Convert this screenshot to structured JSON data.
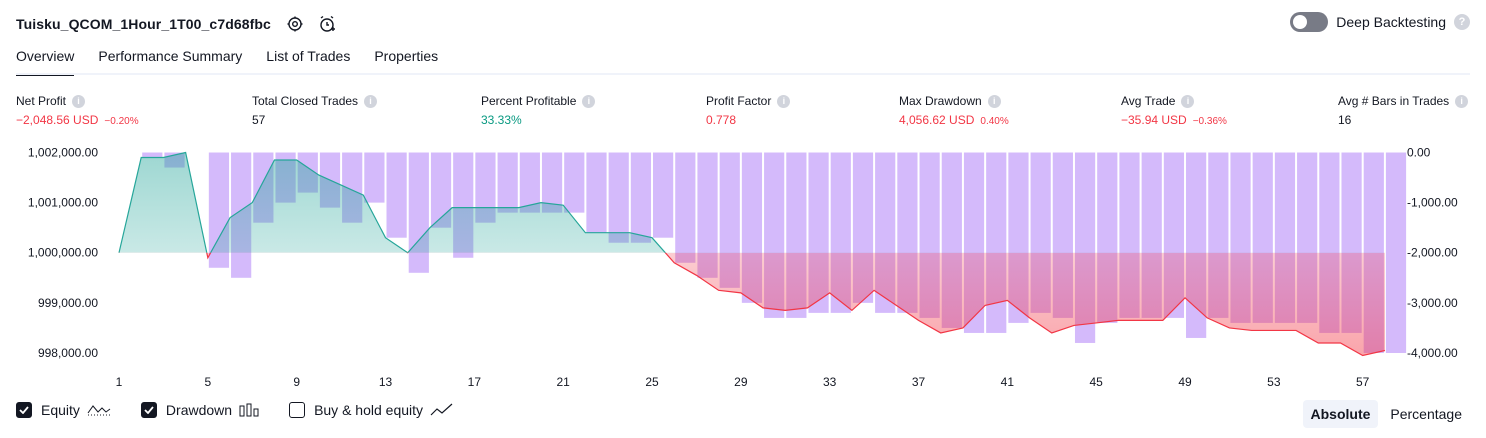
{
  "strategy": {
    "title": "Tuisku_QCOM_1Hour_1T00_c7d68fbc"
  },
  "deep_backtesting": {
    "label": "Deep Backtesting",
    "enabled": false,
    "help": "?"
  },
  "tabs": [
    {
      "label": "Overview",
      "active": true
    },
    {
      "label": "Performance Summary",
      "active": false
    },
    {
      "label": "List of Trades",
      "active": false
    },
    {
      "label": "Properties",
      "active": false
    }
  ],
  "metrics": {
    "net_profit": {
      "label": "Net Profit",
      "value": "−2,048.56 USD",
      "sub": "−0.20%"
    },
    "total_closed_trades": {
      "label": "Total Closed Trades",
      "value": "57"
    },
    "percent_profitable": {
      "label": "Percent Profitable",
      "value": "33.33%"
    },
    "profit_factor": {
      "label": "Profit Factor",
      "value": "0.778"
    },
    "max_drawdown": {
      "label": "Max Drawdown",
      "value": "4,056.62 USD",
      "sub": "0.40%"
    },
    "avg_trade": {
      "label": "Avg Trade",
      "value": "−35.94 USD",
      "sub": "−0.36%"
    },
    "avg_bars": {
      "label": "Avg # Bars in Trades",
      "value": "16"
    },
    "info_glyph": "i"
  },
  "chart_data": {
    "type": "line",
    "x": [
      1,
      2,
      3,
      4,
      5,
      6,
      7,
      8,
      9,
      10,
      11,
      12,
      13,
      14,
      15,
      16,
      17,
      18,
      19,
      20,
      21,
      22,
      23,
      24,
      25,
      26,
      27,
      28,
      29,
      30,
      31,
      32,
      33,
      34,
      35,
      36,
      37,
      38,
      39,
      40,
      41,
      42,
      43,
      44,
      45,
      46,
      47,
      48,
      49,
      50,
      51,
      52,
      53,
      54,
      55,
      56,
      57,
      58
    ],
    "x_ticks": [
      "1",
      "5",
      "9",
      "13",
      "17",
      "21",
      "25",
      "29",
      "33",
      "37",
      "41",
      "45",
      "49",
      "53",
      "57"
    ],
    "y_left_ticks": [
      "1,002,000.00",
      "1,001,000.00",
      "1,000,000.00",
      "999,000.00",
      "998,000.00"
    ],
    "y_left_range": [
      997900,
      1002050
    ],
    "y_right_ticks": [
      "0.00",
      "-1,000.00",
      "-2,000.00",
      "-3,000.00",
      "-4,000.00"
    ],
    "y_right_range": [
      -4100,
      50
    ],
    "baseline": 1000000,
    "series": [
      {
        "name": "Equity",
        "values": [
          1000000,
          1001900,
          1001900,
          1002000,
          999900,
          1000700,
          1001000,
          1001850,
          1001850,
          1001550,
          1001350,
          1001150,
          1000300,
          1000000,
          1000500,
          1000900,
          1000900,
          1000900,
          1000900,
          1001000,
          1000950,
          1000400,
          1000400,
          1000400,
          1000300,
          999800,
          999550,
          999250,
          999200,
          998900,
          998850,
          998900,
          999200,
          998850,
          999250,
          998950,
          998650,
          998400,
          998500,
          998950,
          999050,
          998700,
          998400,
          998550,
          998600,
          998650,
          998650,
          998650,
          999100,
          998700,
          998500,
          998450,
          998450,
          998450,
          998200,
          998200,
          997950,
          998050
        ]
      },
      {
        "name": "Drawdown",
        "values": [
          0,
          -100,
          -300,
          0,
          -2300,
          -2500,
          -1400,
          -1000,
          -800,
          -1100,
          -1400,
          -1000,
          -1700,
          -2400,
          -1500,
          -2100,
          -1400,
          -1200,
          -1200,
          -1200,
          -1200,
          -1600,
          -1800,
          -1800,
          -1700,
          -2200,
          -2500,
          -2700,
          -3000,
          -3300,
          -3300,
          -3200,
          -3200,
          -3000,
          -3200,
          -3200,
          -3300,
          -3500,
          -3600,
          -3600,
          -3400,
          -3200,
          -3300,
          -3800,
          -3400,
          -3300,
          -3300,
          -3300,
          -3700,
          -3300,
          -3400,
          -3400,
          -3400,
          -3400,
          -3600,
          -3600,
          -4000,
          -4000
        ]
      }
    ]
  },
  "legend": [
    {
      "label": "Equity",
      "checked": true,
      "icon": "equity-line-icon"
    },
    {
      "label": "Drawdown",
      "checked": true,
      "icon": "drawdown-bars-icon"
    },
    {
      "label": "Buy & hold equity",
      "checked": false,
      "icon": "buyhold-line-icon"
    }
  ],
  "modes": [
    {
      "label": "Absolute",
      "active": true
    },
    {
      "label": "Percentage",
      "active": false
    }
  ],
  "colors": {
    "equity_up": "#26a69a",
    "equity_down": "#f23645",
    "drawdown": "#c5a3fa",
    "text": "#131722",
    "muted": "#787b86"
  }
}
